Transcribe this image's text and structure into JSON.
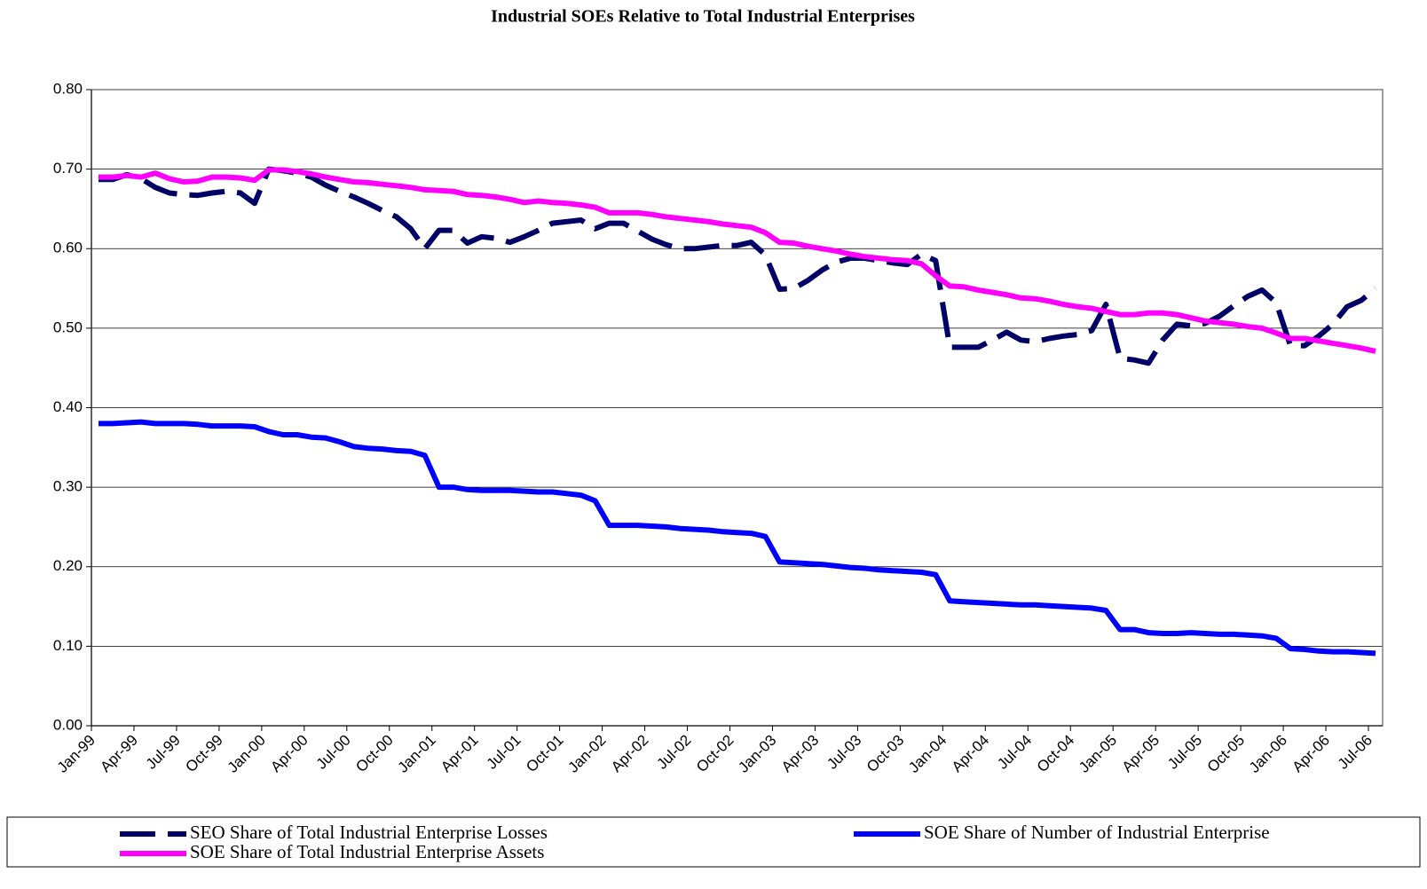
{
  "chart_data": {
    "type": "line",
    "title": "Industrial SOEs Relative to Total Industrial Enterprises",
    "categories": [
      "Jan-99",
      null,
      null,
      "Apr-99",
      null,
      null,
      "Jul-99",
      null,
      null,
      "Oct-99",
      null,
      null,
      "Jan-00",
      null,
      null,
      "Apr-00",
      null,
      null,
      "Jul-00",
      null,
      null,
      "Oct-00",
      null,
      null,
      "Jan-01",
      null,
      null,
      "Apr-01",
      null,
      null,
      "Jul-01",
      null,
      null,
      "Oct-01",
      null,
      null,
      "Jan-02",
      null,
      null,
      "Apr-02",
      null,
      null,
      "Jul-02",
      null,
      null,
      "Oct-02",
      null,
      null,
      "Jan-03",
      null,
      null,
      "Apr-03",
      null,
      null,
      "Jul-03",
      null,
      null,
      "Oct-03",
      null,
      null,
      "Jan-04",
      null,
      null,
      "Apr-04",
      null,
      null,
      "Jul-04",
      null,
      null,
      "Oct-04",
      null,
      null,
      "Jan-05",
      null,
      null,
      "Apr-05",
      null,
      null,
      "Jul-05",
      null,
      null,
      "Oct-05",
      null,
      null,
      "Jan-06",
      null,
      null,
      "Apr-06",
      null,
      null,
      "Jul-06"
    ],
    "series": [
      {
        "name": "SEO Share of Total Industrial Enterprise Losses",
        "color": "#000066",
        "dashed": true,
        "values": [
          0.687,
          0.687,
          0.693,
          0.688,
          0.677,
          0.67,
          0.668,
          0.667,
          0.67,
          0.672,
          0.67,
          0.657,
          0.7,
          0.698,
          0.695,
          0.69,
          0.68,
          0.672,
          0.665,
          0.657,
          0.648,
          0.64,
          0.625,
          0.6,
          0.623,
          0.623,
          0.607,
          0.615,
          0.613,
          0.608,
          0.615,
          0.623,
          0.632,
          0.634,
          0.636,
          0.625,
          0.632,
          0.632,
          0.622,
          0.612,
          0.605,
          0.6,
          0.6,
          0.602,
          0.604,
          0.604,
          0.608,
          0.592,
          0.549,
          0.55,
          0.56,
          0.573,
          0.583,
          0.588,
          0.588,
          0.585,
          0.582,
          0.58,
          0.593,
          0.585,
          0.476,
          0.476,
          0.476,
          0.485,
          0.495,
          0.485,
          0.483,
          0.487,
          0.49,
          0.492,
          0.497,
          0.53,
          0.462,
          0.46,
          0.456,
          0.485,
          0.505,
          0.503,
          0.506,
          0.515,
          0.528,
          0.54,
          0.548,
          0.532,
          0.478,
          0.478,
          0.49,
          0.505,
          0.527,
          0.535,
          0.55
        ]
      },
      {
        "name": "SOE Share of Number of Industrial Enterprise",
        "color": "#0000ff",
        "dashed": false,
        "values": [
          0.38,
          0.38,
          0.381,
          0.382,
          0.38,
          0.38,
          0.38,
          0.379,
          0.377,
          0.377,
          0.377,
          0.376,
          0.37,
          0.366,
          0.366,
          0.363,
          0.362,
          0.357,
          0.351,
          0.349,
          0.348,
          0.346,
          0.345,
          0.34,
          0.3,
          0.3,
          0.297,
          0.296,
          0.296,
          0.296,
          0.295,
          0.294,
          0.294,
          0.292,
          0.29,
          0.283,
          0.252,
          0.252,
          0.252,
          0.251,
          0.25,
          0.248,
          0.247,
          0.246,
          0.244,
          0.243,
          0.242,
          0.238,
          0.206,
          0.205,
          0.204,
          0.203,
          0.201,
          0.199,
          0.198,
          0.196,
          0.195,
          0.194,
          0.193,
          0.19,
          0.157,
          0.156,
          0.155,
          0.154,
          0.153,
          0.152,
          0.152,
          0.151,
          0.15,
          0.149,
          0.148,
          0.145,
          0.121,
          0.121,
          0.117,
          0.116,
          0.116,
          0.117,
          0.116,
          0.115,
          0.115,
          0.114,
          0.113,
          0.11,
          0.097,
          0.096,
          0.094,
          0.093,
          0.093,
          0.092,
          0.091
        ]
      },
      {
        "name": "SOE Share of Total Industrial Enterprise Assets",
        "color": "#ff00ff",
        "dashed": false,
        "values": [
          0.69,
          0.69,
          0.692,
          0.69,
          0.695,
          0.688,
          0.684,
          0.685,
          0.69,
          0.69,
          0.689,
          0.686,
          0.699,
          0.699,
          0.697,
          0.694,
          0.69,
          0.687,
          0.684,
          0.683,
          0.681,
          0.679,
          0.677,
          0.674,
          0.673,
          0.672,
          0.668,
          0.667,
          0.665,
          0.662,
          0.658,
          0.66,
          0.658,
          0.657,
          0.655,
          0.652,
          0.645,
          0.645,
          0.645,
          0.643,
          0.64,
          0.638,
          0.636,
          0.634,
          0.631,
          0.629,
          0.627,
          0.62,
          0.608,
          0.607,
          0.603,
          0.6,
          0.597,
          0.593,
          0.59,
          0.588,
          0.586,
          0.585,
          0.581,
          0.566,
          0.553,
          0.552,
          0.548,
          0.545,
          0.542,
          0.538,
          0.537,
          0.534,
          0.53,
          0.527,
          0.525,
          0.521,
          0.517,
          0.517,
          0.519,
          0.519,
          0.517,
          0.513,
          0.509,
          0.507,
          0.505,
          0.502,
          0.5,
          0.494,
          0.487,
          0.487,
          0.484,
          0.481,
          0.478,
          0.475,
          0.471
        ]
      }
    ],
    "ylim": [
      0,
      0.8
    ],
    "yticks": [
      {
        "value": 0,
        "label": "0.00"
      },
      {
        "value": 0.1,
        "label": "0.10"
      },
      {
        "value": 0.2,
        "label": "0.20"
      },
      {
        "value": 0.3,
        "label": "0.30"
      },
      {
        "value": 0.4,
        "label": "0.40"
      },
      {
        "value": 0.5,
        "label": "0.50"
      },
      {
        "value": 0.6,
        "label": "0.60"
      },
      {
        "value": 0.7,
        "label": "0.70"
      },
      {
        "value": 0.8,
        "label": "0.80"
      }
    ],
    "grid": true,
    "legend": "bottom"
  }
}
